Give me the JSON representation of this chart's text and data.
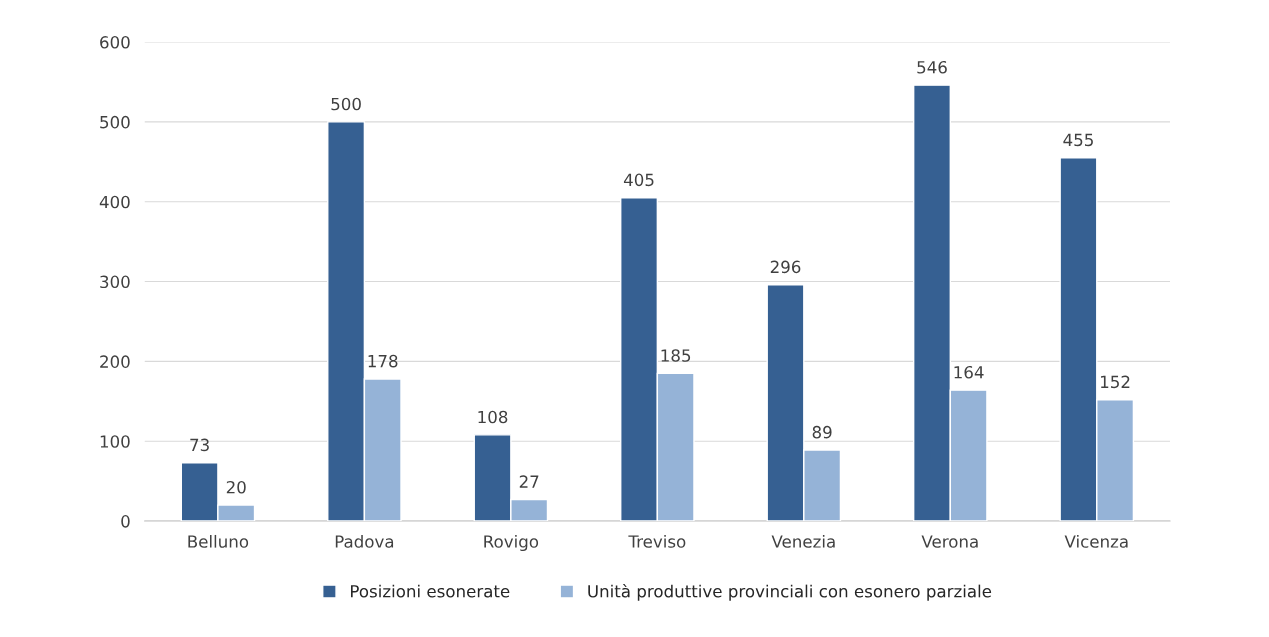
{
  "chart_data": {
    "type": "bar",
    "categories": [
      "Belluno",
      "Padova",
      "Rovigo",
      "Treviso",
      "Venezia",
      "Verona",
      "Vicenza"
    ],
    "series": [
      {
        "name": "Posizioni esonerate",
        "color": "#366092",
        "values": [
          73,
          500,
          108,
          405,
          296,
          546,
          455
        ]
      },
      {
        "name": "Unità produttive provinciali con esonero parziale",
        "color": "#95b3d7",
        "values": [
          20,
          178,
          27,
          185,
          89,
          164,
          152
        ]
      }
    ],
    "ylim": [
      0,
      600
    ],
    "yticks": [
      0,
      100,
      200,
      300,
      400,
      500,
      600
    ],
    "grid": "y",
    "legend": "bottom",
    "data_labels": true
  }
}
